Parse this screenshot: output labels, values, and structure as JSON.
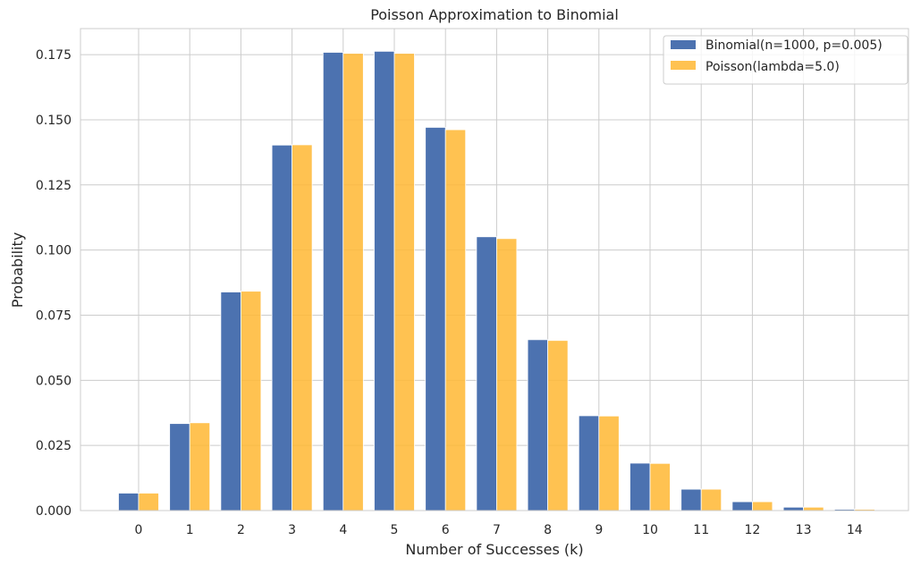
{
  "chart_data": {
    "type": "bar",
    "title": "Poisson Approximation to Binomial",
    "xlabel": "Number of Successes (k)",
    "ylabel": "Probability",
    "categories": [
      "0",
      "1",
      "2",
      "3",
      "4",
      "5",
      "6",
      "7",
      "8",
      "9",
      "10",
      "11",
      "12",
      "13",
      "14"
    ],
    "ylim": [
      0,
      0.185
    ],
    "yticks": [
      "0.000",
      "0.025",
      "0.050",
      "0.075",
      "0.100",
      "0.125",
      "0.150",
      "0.175"
    ],
    "grid": true,
    "legend_position": "top-right",
    "series": [
      {
        "name": "Binomial(n=1000, p=0.005)",
        "color": "#4C72B0",
        "values": [
          0.0067,
          0.0334,
          0.0839,
          0.1403,
          0.1759,
          0.1763,
          0.1471,
          0.1051,
          0.0656,
          0.0364,
          0.0182,
          0.0082,
          0.0034,
          0.0013,
          0.0005
        ]
      },
      {
        "name": "Poisson(lambda=5.0)",
        "color": "#FFB733",
        "values": [
          0.0067,
          0.0337,
          0.0842,
          0.1404,
          0.1755,
          0.1755,
          0.1462,
          0.1044,
          0.0653,
          0.0363,
          0.0181,
          0.0082,
          0.0034,
          0.0013,
          0.0005
        ]
      }
    ]
  }
}
